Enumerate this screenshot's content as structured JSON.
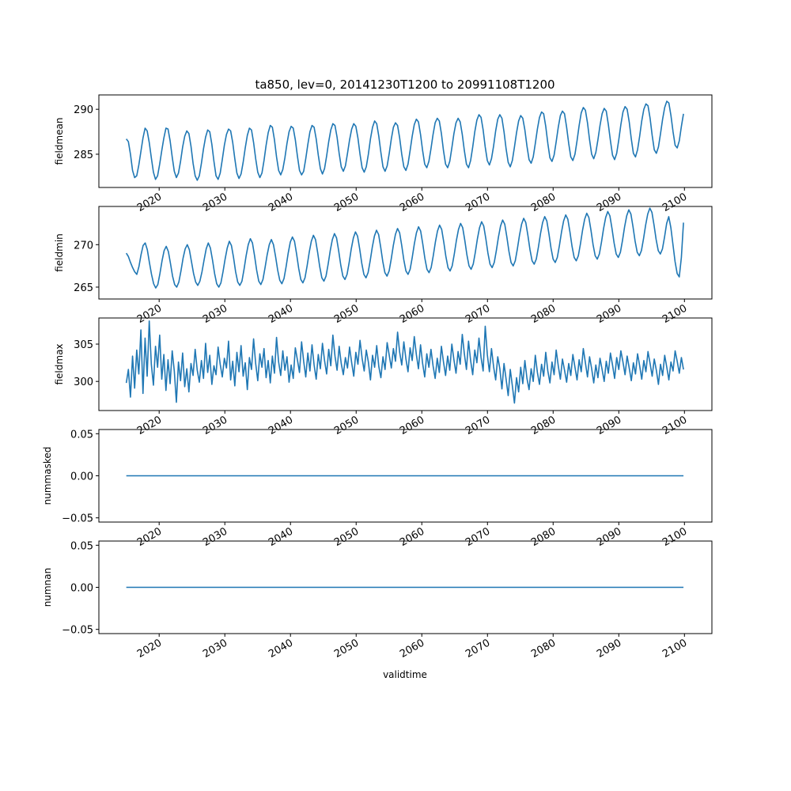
{
  "figure": {
    "title": "ta850, lev=0, 20141230T1200 to 20991108T1200",
    "xlabel": "validtime"
  },
  "colors": {
    "line": "#1f77b4",
    "axes": "#000000",
    "background": "#ffffff"
  },
  "chart_data": [
    {
      "type": "line",
      "ylabel": "fieldmean",
      "xlim": [
        "2010-10-27",
        "2104-03-08"
      ],
      "ylim": [
        281.3,
        291.6
      ],
      "yticks": [
        285,
        290
      ],
      "xticks": [
        "2020",
        "2030",
        "2040",
        "2050",
        "2060",
        "2070",
        "2080",
        "2090",
        "2100"
      ],
      "grid": false,
      "series": [
        {
          "x_start": "2014-12-30",
          "x_end": "2099-11-08",
          "sampling": "monthly",
          "values": [
            286.7,
            286.4,
            285.0,
            283.2,
            282.4,
            282.6,
            283.8,
            285.3,
            286.8,
            287.9,
            287.6,
            286.3,
            284.6,
            283.0,
            282.2,
            282.6,
            283.9,
            285.4,
            286.8,
            287.9,
            287.8,
            286.5,
            284.7,
            283.1,
            282.4,
            282.9,
            284.2,
            285.8,
            287.0,
            287.6,
            287.3,
            285.9,
            284.0,
            282.6,
            282.1,
            282.6,
            284.0,
            285.6,
            286.9,
            287.7,
            287.5,
            286.1,
            284.2,
            282.6,
            282.2,
            282.9,
            284.4,
            286.0,
            287.2,
            287.8,
            287.6,
            286.3,
            284.5,
            282.9,
            282.3,
            282.8,
            284.1,
            285.7,
            287.1,
            287.9,
            287.7,
            286.3,
            284.5,
            283.0,
            282.4,
            282.9,
            284.3,
            286.0,
            287.4,
            288.2,
            288.0,
            286.6,
            284.7,
            283.2,
            282.7,
            283.3,
            284.6,
            286.2,
            287.5,
            288.1,
            287.9,
            286.6,
            284.8,
            283.2,
            282.7,
            283.1,
            284.5,
            286.1,
            287.5,
            288.2,
            288.0,
            286.7,
            284.9,
            283.4,
            282.8,
            283.4,
            284.8,
            286.4,
            287.7,
            288.4,
            288.2,
            286.9,
            285.1,
            283.6,
            283.1,
            283.7,
            285.1,
            286.6,
            287.8,
            288.4,
            288.1,
            286.8,
            285.0,
            283.5,
            283.0,
            283.6,
            285.0,
            286.7,
            288.0,
            288.7,
            288.4,
            287.0,
            285.2,
            283.6,
            283.1,
            283.7,
            285.1,
            286.7,
            288.0,
            288.5,
            288.2,
            286.8,
            285.0,
            283.6,
            283.2,
            283.9,
            285.4,
            287.0,
            288.3,
            288.9,
            288.6,
            287.2,
            285.4,
            283.9,
            283.5,
            284.2,
            285.6,
            287.2,
            288.5,
            289.0,
            288.7,
            287.3,
            285.4,
            283.9,
            283.5,
            284.2,
            285.7,
            287.3,
            288.5,
            289.0,
            288.6,
            287.2,
            285.4,
            283.9,
            283.5,
            284.3,
            285.8,
            287.5,
            288.8,
            289.4,
            289.1,
            287.7,
            285.8,
            284.3,
            283.8,
            284.5,
            285.9,
            287.6,
            288.9,
            289.4,
            289.0,
            287.5,
            285.6,
            284.1,
            283.6,
            284.3,
            285.8,
            287.4,
            288.7,
            289.3,
            289.0,
            287.7,
            285.9,
            284.4,
            284.0,
            284.7,
            286.2,
            287.8,
            289.1,
            289.7,
            289.5,
            288.1,
            286.2,
            284.6,
            284.2,
            284.9,
            286.4,
            288.0,
            289.3,
            289.8,
            289.5,
            288.0,
            286.2,
            284.7,
            284.3,
            285.0,
            286.5,
            288.2,
            289.6,
            290.2,
            289.9,
            288.5,
            286.6,
            285.0,
            284.5,
            285.2,
            286.6,
            288.2,
            289.5,
            290.1,
            289.8,
            288.3,
            286.5,
            284.9,
            284.4,
            285.1,
            286.6,
            288.3,
            289.7,
            290.3,
            290.0,
            288.6,
            286.7,
            285.1,
            284.7,
            285.5,
            287.0,
            288.7,
            290.0,
            290.6,
            290.4,
            289.0,
            287.1,
            285.5,
            285.1,
            285.8,
            287.3,
            288.9,
            290.2,
            290.9,
            290.7,
            289.3,
            287.5,
            286.0,
            285.7,
            286.5,
            288.1,
            289.5
          ]
        }
      ]
    },
    {
      "type": "line",
      "ylabel": "fieldmin",
      "xlim": [
        "2010-10-27",
        "2104-03-08"
      ],
      "ylim": [
        263.6,
        274.5
      ],
      "yticks": [
        265,
        270
      ],
      "xticks": [
        "2020",
        "2030",
        "2040",
        "2050",
        "2060",
        "2070",
        "2080",
        "2090",
        "2100"
      ],
      "grid": false,
      "series": [
        {
          "x_start": "2014-12-30",
          "x_end": "2099-11-08",
          "sampling": "monthly",
          "values": [
            269.0,
            268.6,
            267.9,
            267.3,
            266.8,
            266.5,
            267.4,
            268.8,
            269.9,
            270.2,
            269.4,
            267.9,
            266.5,
            265.4,
            264.9,
            265.3,
            266.6,
            268.1,
            269.3,
            269.8,
            269.2,
            267.8,
            266.3,
            265.3,
            265.0,
            265.6,
            266.9,
            268.4,
            269.5,
            270.0,
            269.4,
            268.0,
            266.6,
            265.6,
            265.2,
            265.7,
            266.8,
            268.2,
            269.5,
            270.2,
            269.6,
            268.2,
            266.6,
            265.4,
            265.0,
            265.5,
            266.8,
            268.3,
            269.6,
            270.4,
            269.9,
            268.5,
            266.8,
            265.6,
            265.2,
            265.7,
            267.1,
            268.7,
            270.0,
            270.7,
            270.2,
            268.7,
            267.0,
            265.7,
            265.3,
            265.9,
            267.3,
            268.8,
            270.0,
            270.6,
            270.0,
            268.6,
            267.0,
            265.8,
            265.4,
            266.0,
            267.4,
            269.0,
            270.3,
            270.9,
            270.4,
            268.9,
            267.2,
            265.9,
            265.5,
            266.1,
            267.5,
            269.1,
            270.4,
            271.1,
            270.6,
            269.1,
            267.4,
            266.1,
            265.7,
            266.3,
            267.7,
            269.3,
            270.6,
            271.3,
            270.8,
            269.3,
            267.6,
            266.3,
            265.9,
            266.5,
            267.9,
            269.5,
            270.8,
            271.5,
            271.0,
            269.5,
            267.8,
            266.5,
            266.1,
            266.7,
            268.1,
            269.7,
            271.0,
            271.7,
            271.2,
            269.7,
            268.0,
            266.7,
            266.3,
            266.9,
            268.3,
            269.9,
            271.2,
            271.9,
            271.4,
            269.9,
            268.2,
            266.9,
            266.5,
            267.1,
            268.5,
            270.1,
            271.4,
            272.1,
            271.6,
            270.1,
            268.4,
            267.1,
            266.7,
            267.3,
            268.7,
            270.3,
            271.6,
            272.3,
            271.8,
            270.3,
            268.6,
            267.3,
            266.9,
            267.5,
            268.9,
            270.5,
            271.8,
            272.5,
            272.0,
            270.5,
            268.8,
            267.5,
            267.1,
            267.7,
            269.1,
            270.7,
            272.0,
            272.7,
            272.2,
            270.7,
            269.0,
            267.7,
            267.3,
            267.9,
            269.3,
            270.9,
            272.2,
            272.9,
            272.4,
            270.9,
            269.2,
            267.9,
            267.5,
            268.1,
            269.5,
            271.1,
            272.4,
            273.1,
            272.6,
            271.1,
            269.4,
            268.1,
            267.7,
            268.3,
            269.7,
            271.3,
            272.6,
            273.3,
            272.8,
            271.3,
            269.6,
            268.3,
            267.9,
            268.5,
            269.9,
            271.5,
            272.8,
            273.5,
            273.0,
            271.5,
            269.8,
            268.5,
            268.1,
            268.7,
            270.1,
            271.7,
            273.0,
            273.7,
            273.2,
            271.7,
            270.0,
            268.7,
            268.3,
            268.9,
            270.3,
            271.9,
            273.2,
            273.9,
            273.4,
            271.9,
            270.2,
            268.9,
            268.5,
            269.1,
            270.5,
            272.1,
            273.4,
            274.1,
            273.6,
            272.1,
            270.4,
            269.1,
            268.7,
            269.3,
            270.7,
            272.3,
            273.6,
            274.3,
            273.8,
            272.3,
            270.6,
            269.3,
            268.9,
            269.5,
            270.9,
            272.5,
            273.3,
            272.0,
            270.0,
            268.0,
            266.6,
            266.2,
            268.5,
            272.6
          ]
        }
      ]
    },
    {
      "type": "line",
      "ylabel": "fieldmax",
      "xlim": [
        "2010-10-27",
        "2104-03-08"
      ],
      "ylim": [
        296.1,
        308.5
      ],
      "yticks": [
        300,
        305
      ],
      "xticks": [
        "2020",
        "2030",
        "2040",
        "2050",
        "2060",
        "2070",
        "2080",
        "2090",
        "2100"
      ],
      "grid": false,
      "series": [
        {
          "x_start": "2014-12-30",
          "x_end": "2099-11-08",
          "sampling": "monthly",
          "values": [
            299.8,
            301.6,
            297.9,
            303.4,
            299.1,
            304.2,
            301.0,
            306.9,
            298.4,
            305.8,
            300.7,
            308.1,
            302.3,
            299.5,
            304.7,
            301.9,
            306.2,
            300.3,
            303.6,
            298.8,
            302.9,
            299.7,
            304.1,
            301.4,
            297.2,
            302.6,
            300.1,
            303.8,
            299.3,
            301.7,
            298.6,
            302.4,
            300.8,
            304.3,
            301.5,
            299.9,
            302.8,
            300.4,
            305.1,
            301.2,
            303.5,
            299.6,
            302.1,
            300.9,
            304.6,
            302.3,
            300.6,
            303.1,
            301.8,
            305.4,
            300.2,
            302.7,
            299.4,
            303.9,
            301.3,
            304.8,
            300.7,
            302.5,
            298.9,
            303.2,
            301.6,
            305.7,
            302.4,
            300.1,
            303.7,
            301.9,
            304.4,
            300.5,
            302.8,
            299.8,
            303.4,
            301.1,
            305.9,
            302.6,
            300.8,
            304.1,
            301.5,
            303.3,
            299.9,
            302.2,
            300.4,
            304.5,
            302.9,
            301.2,
            305.3,
            302.7,
            300.6,
            303.8,
            301.4,
            304.9,
            302.2,
            300.3,
            303.6,
            301.7,
            305.1,
            302.8,
            301.0,
            304.3,
            302.1,
            306.2,
            303.4,
            301.5,
            304.7,
            302.4,
            300.9,
            303.2,
            301.8,
            304.6,
            302.5,
            300.7,
            303.9,
            302.3,
            305.5,
            303.1,
            301.4,
            304.2,
            302.6,
            300.2,
            303.5,
            301.9,
            304.8,
            302.0,
            300.5,
            303.3,
            301.6,
            305.2,
            303.5,
            301.8,
            304.4,
            302.7,
            306.6,
            303.9,
            302.2,
            305.3,
            303.0,
            301.3,
            304.5,
            302.8,
            306.0,
            303.6,
            301.7,
            304.9,
            302.4,
            300.6,
            303.7,
            301.9,
            304.3,
            302.1,
            300.4,
            303.1,
            301.2,
            304.7,
            302.6,
            300.8,
            303.4,
            301.5,
            305.0,
            302.9,
            301.1,
            304.0,
            302.3,
            306.3,
            303.7,
            301.6,
            305.4,
            302.8,
            300.9,
            304.2,
            302.5,
            305.8,
            303.2,
            301.4,
            307.4,
            303.6,
            301.3,
            304.4,
            302.0,
            300.2,
            303.3,
            301.7,
            299.0,
            302.4,
            300.3,
            298.1,
            301.6,
            299.4,
            297.1,
            300.5,
            298.6,
            301.9,
            299.7,
            302.8,
            300.4,
            298.9,
            301.7,
            300.0,
            303.5,
            301.2,
            299.6,
            302.3,
            300.7,
            303.9,
            301.4,
            299.8,
            302.6,
            300.9,
            304.2,
            302.1,
            300.3,
            303.0,
            301.5,
            299.9,
            302.4,
            300.8,
            303.6,
            301.9,
            300.2,
            302.9,
            301.3,
            304.4,
            302.5,
            300.6,
            303.3,
            301.7,
            299.8,
            302.2,
            300.5,
            303.1,
            301.6,
            300.0,
            302.7,
            301.1,
            303.8,
            302.2,
            300.4,
            303.2,
            301.6,
            304.1,
            302.6,
            300.9,
            303.4,
            301.8,
            300.1,
            302.5,
            301.0,
            303.7,
            302.1,
            300.3,
            302.8,
            301.3,
            304.0,
            302.4,
            300.7,
            303.0,
            301.5,
            299.6,
            302.3,
            300.8,
            303.5,
            301.9,
            300.2,
            302.6,
            301.4,
            304.1,
            302.7,
            301.1,
            303.2,
            301.6
          ]
        }
      ]
    },
    {
      "type": "line",
      "ylabel": "nummasked",
      "xlim": [
        "2010-10-27",
        "2104-03-08"
      ],
      "ylim": [
        -0.055,
        0.055
      ],
      "yticks": [
        "−0.05",
        "0.00",
        "0.05"
      ],
      "xticks": [
        "2020",
        "2030",
        "2040",
        "2050",
        "2060",
        "2070",
        "2080",
        "2090",
        "2100"
      ],
      "grid": false,
      "series": [
        {
          "x": [
            "2014-12-30",
            "2099-11-08"
          ],
          "values": [
            0,
            0
          ]
        }
      ]
    },
    {
      "type": "line",
      "ylabel": "numnan",
      "xlim": [
        "2010-10-27",
        "2104-03-08"
      ],
      "ylim": [
        -0.055,
        0.055
      ],
      "yticks": [
        "−0.05",
        "0.00",
        "0.05"
      ],
      "xticks": [
        "2020",
        "2030",
        "2040",
        "2050",
        "2060",
        "2070",
        "2080",
        "2090",
        "2100"
      ],
      "grid": false,
      "series": [
        {
          "x": [
            "2014-12-30",
            "2099-11-08"
          ],
          "values": [
            0,
            0
          ]
        }
      ]
    }
  ]
}
